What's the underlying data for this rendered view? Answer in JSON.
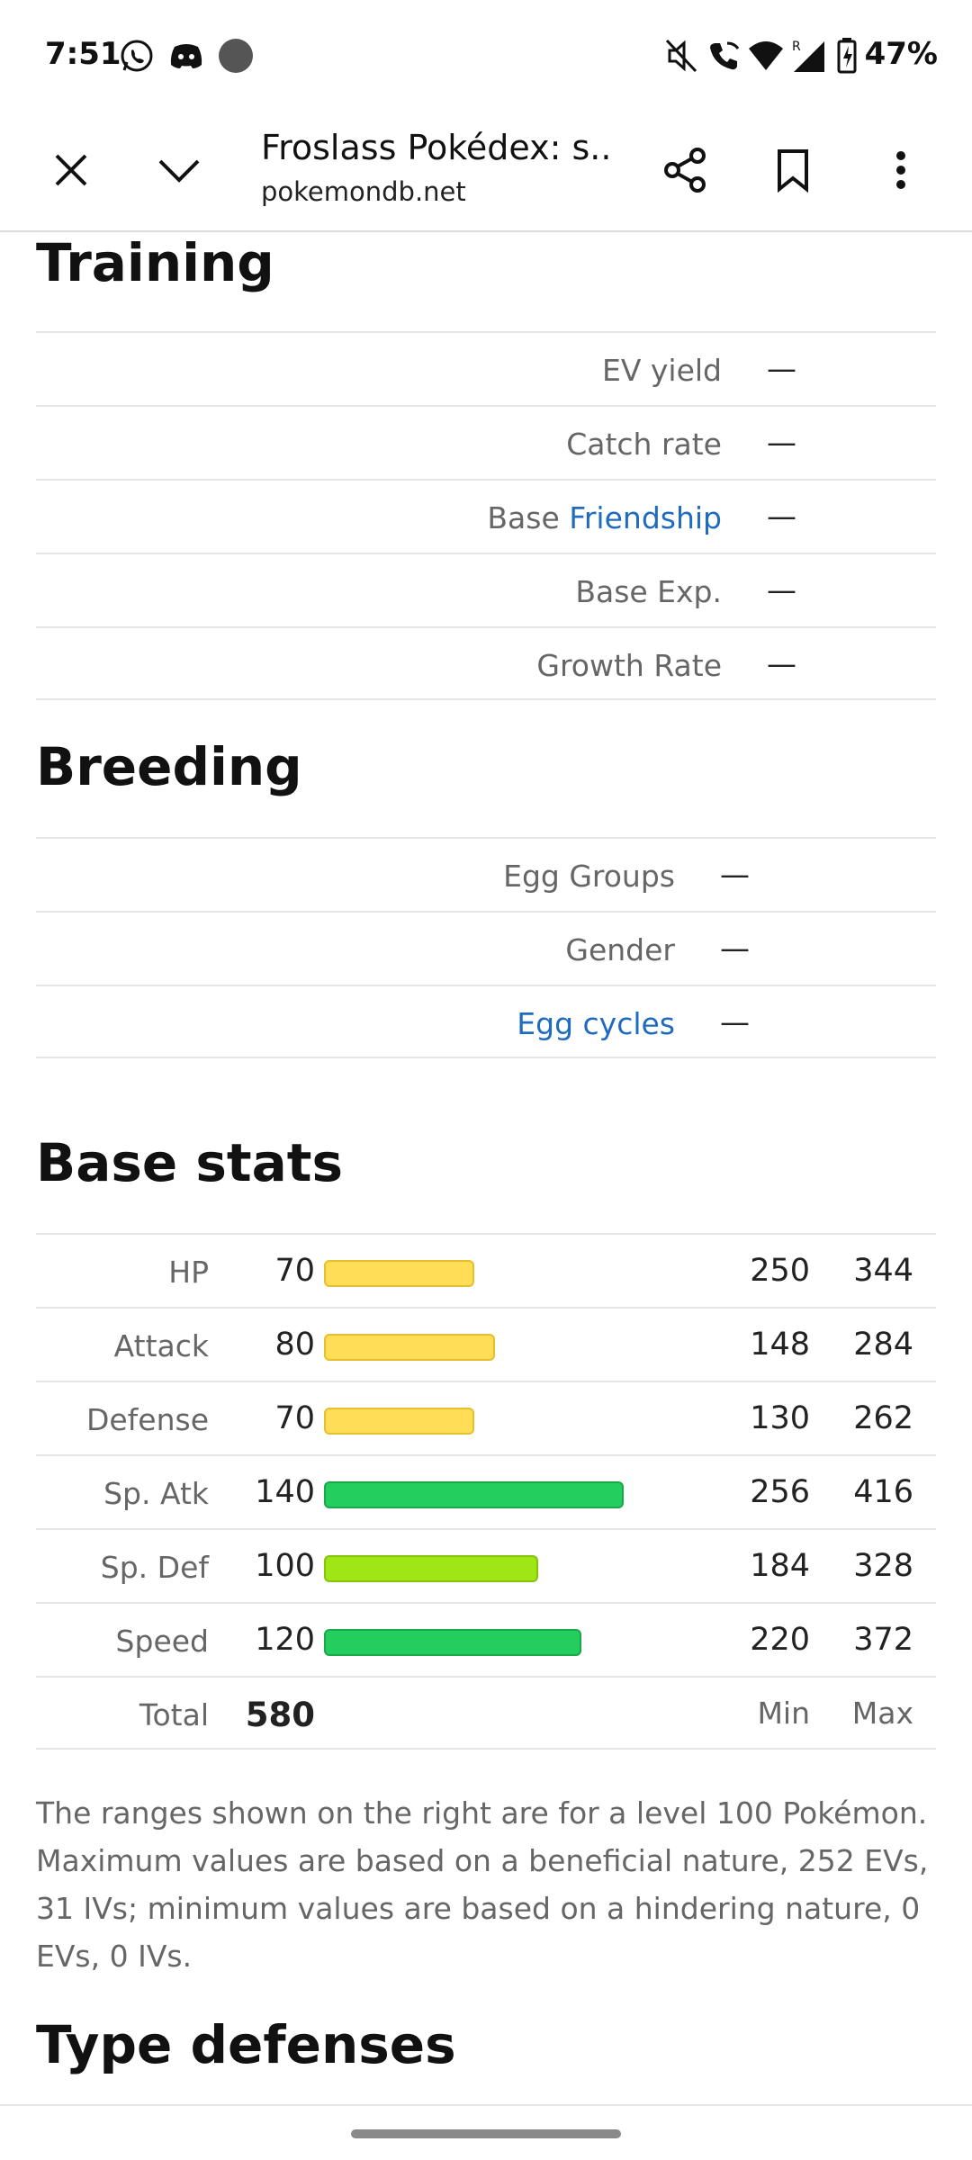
{
  "status_bar": {
    "time": "7:51",
    "battery": "47%",
    "icons": [
      "whatsapp-icon",
      "discord-icon",
      "dot-icon",
      "mute-icon",
      "wifi-call-icon",
      "wifi-icon",
      "signal-icon",
      "battery-icon"
    ]
  },
  "toolbar": {
    "title": "Froslass Pokédex: s...",
    "url": "pokemondb.net"
  },
  "training": {
    "heading": "Training",
    "rows": [
      {
        "label": "EV yield",
        "value": "—"
      },
      {
        "label": "Catch rate",
        "value": "—"
      },
      {
        "label_prefix": "Base",
        "label_link": "Friendship",
        "value": "—"
      },
      {
        "label": "Base Exp.",
        "value": "—"
      },
      {
        "label": "Growth Rate",
        "value": "—"
      }
    ]
  },
  "breeding": {
    "heading": "Breeding",
    "rows": [
      {
        "label": "Egg Groups",
        "value": "—"
      },
      {
        "label": "Gender",
        "value": "—"
      },
      {
        "label_link": "Egg cycles",
        "value": "—"
      }
    ]
  },
  "base_stats": {
    "heading": "Base stats",
    "stats": [
      {
        "name": "HP",
        "value": "70",
        "min": "250",
        "max": "344",
        "color": "yellow"
      },
      {
        "name": "Attack",
        "value": "80",
        "min": "148",
        "max": "284",
        "color": "yellow"
      },
      {
        "name": "Defense",
        "value": "70",
        "min": "130",
        "max": "262",
        "color": "yellow"
      },
      {
        "name": "Sp. Atk",
        "value": "140",
        "min": "256",
        "max": "416",
        "color": "green"
      },
      {
        "name": "Sp. Def",
        "value": "100",
        "min": "184",
        "max": "328",
        "color": "lime"
      },
      {
        "name": "Speed",
        "value": "120",
        "min": "220",
        "max": "372",
        "color": "green"
      }
    ],
    "total_label": "Total",
    "total_value": "580",
    "min_label": "Min",
    "max_label": "Max",
    "note": "The ranges shown on the right are for a level 100 Pokémon. Maximum values are based on a beneficial nature, 252 EVs, 31 IVs; minimum values are based on a hindering nature, 0 EVs, 0 IVs."
  },
  "type_defenses": {
    "heading": "Type defenses"
  },
  "colors": {
    "link": "#1f6bbf",
    "bar_yellow": "#ffdd57",
    "bar_green": "#23cd5e",
    "bar_lime": "#a0e515"
  }
}
